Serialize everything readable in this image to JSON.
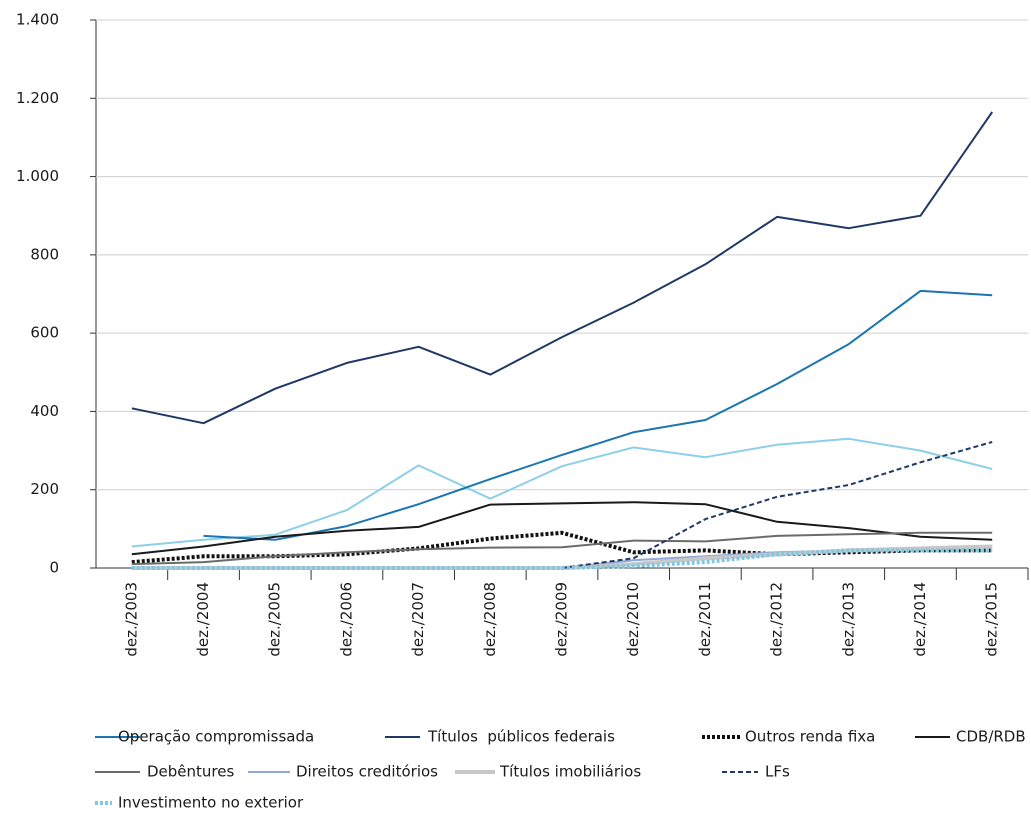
{
  "chart_data": {
    "type": "line",
    "categories": [
      "dez./2003",
      "dez./2004",
      "dez./2005",
      "dez./2006",
      "dez./2007",
      "dez./2008",
      "dez./2009",
      "dez./2010",
      "dez./2011",
      "dez./2012",
      "dez./2013",
      "dez./2014",
      "dez./2015"
    ],
    "ylim": [
      0,
      1400
    ],
    "yticks": [
      0,
      200,
      400,
      600,
      800,
      {
        "value": 1000,
        "label": "1.000"
      },
      {
        "value": 1200,
        "label": "1.200"
      },
      {
        "value": 1400,
        "label": "1.400"
      }
    ],
    "grid": true,
    "series": [
      {
        "color": "#8ecfe8",
        "style": "solid",
        "values": [
          55,
          72,
          85,
          148,
          262,
          177,
          260,
          308,
          283,
          315,
          330,
          300,
          253
        ]
      },
      {
        "name": "Operação compromissada",
        "color": "#1a75b0",
        "style": "solid",
        "values": [
          null,
          82,
          72,
          107,
          163,
          227,
          289,
          347,
          378,
          470,
          572,
          708,
          697
        ]
      },
      {
        "name": "Títulos  públicos federais",
        "color": "#1f3864",
        "style": "solid",
        "values": [
          408,
          370,
          458,
          524,
          565,
          494,
          590,
          678,
          776,
          897,
          868,
          900,
          1165
        ]
      },
      {
        "name": "Outros renda fixa",
        "color": "#111111",
        "style": "dotted",
        "values": [
          15,
          30,
          30,
          35,
          50,
          75,
          90,
          40,
          45,
          35,
          40,
          45,
          45
        ]
      },
      {
        "name": "CDB/RDB",
        "color": "#1a1a1a",
        "style": "solid",
        "values": [
          35,
          55,
          80,
          95,
          105,
          162,
          165,
          168,
          163,
          118,
          102,
          80,
          72
        ]
      },
      {
        "name": "Debêntures",
        "color": "#6b6b6b",
        "style": "solid",
        "values": [
          10,
          15,
          30,
          40,
          48,
          52,
          53,
          70,
          68,
          82,
          86,
          90,
          90
        ]
      },
      {
        "name": "Direitos creditórios",
        "color": "#8fa8d8",
        "style": "solid",
        "values": [
          0,
          0,
          0,
          0,
          0,
          0,
          0,
          20,
          30,
          40,
          45,
          50,
          55
        ]
      },
      {
        "name": "Títulos imobiliários",
        "color": "#c8c8c8",
        "style": "thick",
        "values": [
          0,
          0,
          0,
          0,
          0,
          0,
          0,
          10,
          25,
          35,
          45,
          50,
          55
        ]
      },
      {
        "name": "LFs",
        "color": "#1f3864",
        "style": "dashed",
        "values": [
          null,
          null,
          null,
          null,
          null,
          null,
          0,
          25,
          125,
          182,
          212,
          270,
          322
        ]
      },
      {
        "name": "Investimento no exterior",
        "color": "#7ec8e3",
        "style": "dotted",
        "values": [
          0,
          0,
          0,
          0,
          0,
          0,
          0,
          5,
          15,
          35,
          45,
          45,
          45
        ]
      }
    ]
  }
}
